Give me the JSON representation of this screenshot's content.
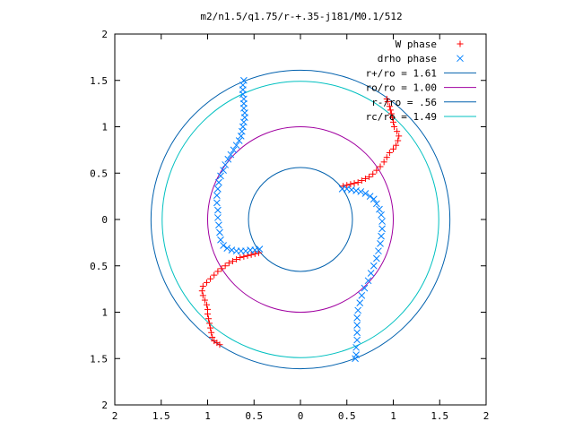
{
  "chart_data": {
    "type": "scatter",
    "title": "m2/n1.5/q1.75/r-+.35-j181/M0.1/512",
    "xlim": [
      -2,
      2
    ],
    "ylim": [
      -2,
      2
    ],
    "x_ticks": [
      -2,
      -1.5,
      -1,
      -0.5,
      0,
      0.5,
      1,
      1.5,
      2
    ],
    "y_ticks": [
      -2,
      -1.5,
      -1,
      -0.5,
      0,
      0.5,
      1,
      1.5,
      2
    ],
    "x_tick_labels": [
      "2",
      "1.5",
      "1",
      "0.5",
      "0",
      "0.5",
      "1",
      "1.5",
      "2"
    ],
    "y_tick_labels": [
      "2",
      "1.5",
      "1",
      "0.5",
      "0",
      "0.5",
      "1",
      "1.5",
      "2"
    ],
    "grid": false,
    "legend_position": "top-right",
    "legend": [
      {
        "label": "W phase",
        "kind": "plus",
        "color": "#ff0000"
      },
      {
        "label": "drho phase",
        "kind": "cross",
        "color": "#0080ff"
      },
      {
        "label": "r+/ro = 1.61",
        "kind": "line",
        "color": "#0060ad"
      },
      {
        "label": "ro/ro = 1.00",
        "kind": "line",
        "color": "#a000a0"
      },
      {
        "label": "r-/ro = .56",
        "kind": "line",
        "color": "#0060ad"
      },
      {
        "label": "rc/ro = 1.49",
        "kind": "line",
        "color": "#00c0c0"
      }
    ],
    "circles": [
      {
        "name": "r+/ro",
        "radius": 1.61,
        "color": "#0060ad"
      },
      {
        "name": "ro/ro",
        "radius": 1.0,
        "color": "#a000a0"
      },
      {
        "name": "r-/ro",
        "radius": 0.56,
        "color": "#0060ad"
      },
      {
        "name": "rc/ro",
        "radius": 1.49,
        "color": "#00c0c0"
      }
    ],
    "series": [
      {
        "name": "W phase",
        "marker": "plus",
        "color": "#ff0000",
        "points": [
          [
            0.46,
            0.36
          ],
          [
            0.5,
            0.37
          ],
          [
            0.54,
            0.38
          ],
          [
            0.58,
            0.39
          ],
          [
            0.62,
            0.4
          ],
          [
            0.66,
            0.42
          ],
          [
            0.7,
            0.44
          ],
          [
            0.74,
            0.46
          ],
          [
            0.78,
            0.49
          ],
          [
            0.82,
            0.53
          ],
          [
            0.86,
            0.57
          ],
          [
            0.9,
            0.62
          ],
          [
            0.93,
            0.67
          ],
          [
            0.96,
            0.72
          ],
          [
            1.0,
            0.76
          ],
          [
            1.03,
            0.8
          ],
          [
            1.05,
            0.85
          ],
          [
            1.06,
            0.9
          ],
          [
            1.04,
            0.95
          ],
          [
            1.01,
            1.0
          ],
          [
            1.0,
            1.05
          ],
          [
            0.99,
            1.1
          ],
          [
            0.98,
            1.14
          ],
          [
            0.97,
            1.18
          ],
          [
            0.96,
            1.22
          ],
          [
            0.94,
            1.27
          ],
          [
            0.93,
            1.3
          ],
          [
            -0.45,
            -0.36
          ],
          [
            -0.49,
            -0.37
          ],
          [
            -0.53,
            -0.38
          ],
          [
            -0.57,
            -0.39
          ],
          [
            -0.61,
            -0.4
          ],
          [
            -0.65,
            -0.41
          ],
          [
            -0.69,
            -0.43
          ],
          [
            -0.73,
            -0.45
          ],
          [
            -0.77,
            -0.47
          ],
          [
            -0.81,
            -0.5
          ],
          [
            -0.85,
            -0.53
          ],
          [
            -0.89,
            -0.56
          ],
          [
            -0.93,
            -0.6
          ],
          [
            -0.97,
            -0.64
          ],
          [
            -1.01,
            -0.68
          ],
          [
            -1.05,
            -0.72
          ],
          [
            -1.06,
            -0.77
          ],
          [
            -1.05,
            -0.82
          ],
          [
            -1.03,
            -0.87
          ],
          [
            -1.01,
            -0.92
          ],
          [
            -1.0,
            -0.97
          ],
          [
            -1.0,
            -1.02
          ],
          [
            -0.99,
            -1.07
          ],
          [
            -0.98,
            -1.12
          ],
          [
            -0.97,
            -1.17
          ],
          [
            -0.96,
            -1.22
          ],
          [
            -0.95,
            -1.27
          ],
          [
            -0.93,
            -1.31
          ],
          [
            -0.9,
            -1.33
          ],
          [
            -0.87,
            -1.35
          ]
        ]
      },
      {
        "name": "drho phase",
        "marker": "cross",
        "color": "#0080ff",
        "points": [
          [
            -0.61,
            1.5
          ],
          [
            -0.62,
            1.45
          ],
          [
            -0.62,
            1.4
          ],
          [
            -0.62,
            1.35
          ],
          [
            -0.61,
            1.3
          ],
          [
            -0.61,
            1.25
          ],
          [
            -0.61,
            1.2
          ],
          [
            -0.6,
            1.15
          ],
          [
            -0.6,
            1.1
          ],
          [
            -0.61,
            1.05
          ],
          [
            -0.62,
            1.0
          ],
          [
            -0.63,
            0.95
          ],
          [
            -0.64,
            0.9
          ],
          [
            -0.66,
            0.85
          ],
          [
            -0.69,
            0.8
          ],
          [
            -0.72,
            0.75
          ],
          [
            -0.75,
            0.7
          ],
          [
            -0.78,
            0.65
          ],
          [
            -0.81,
            0.59
          ],
          [
            -0.83,
            0.53
          ],
          [
            -0.86,
            0.47
          ],
          [
            -0.88,
            0.4
          ],
          [
            -0.89,
            0.33
          ],
          [
            -0.9,
            0.26
          ],
          [
            -0.9,
            0.18
          ],
          [
            -0.89,
            0.1
          ],
          [
            -0.89,
            0.02
          ],
          [
            -0.88,
            -0.06
          ],
          [
            -0.87,
            -0.14
          ],
          [
            -0.86,
            -0.22
          ],
          [
            -0.83,
            -0.28
          ],
          [
            -0.79,
            -0.31
          ],
          [
            -0.74,
            -0.33
          ],
          [
            -0.69,
            -0.34
          ],
          [
            -0.64,
            -0.34
          ],
          [
            -0.59,
            -0.34
          ],
          [
            -0.54,
            -0.33
          ],
          [
            -0.49,
            -0.33
          ],
          [
            -0.44,
            -0.32
          ],
          [
            0.45,
            0.33
          ],
          [
            0.5,
            0.33
          ],
          [
            0.55,
            0.32
          ],
          [
            0.6,
            0.31
          ],
          [
            0.65,
            0.3
          ],
          [
            0.7,
            0.28
          ],
          [
            0.75,
            0.25
          ],
          [
            0.79,
            0.22
          ],
          [
            0.82,
            0.17
          ],
          [
            0.85,
            0.11
          ],
          [
            0.87,
            0.05
          ],
          [
            0.88,
            -0.02
          ],
          [
            0.88,
            -0.1
          ],
          [
            0.87,
            -0.18
          ],
          [
            0.86,
            -0.26
          ],
          [
            0.84,
            -0.34
          ],
          [
            0.82,
            -0.42
          ],
          [
            0.79,
            -0.5
          ],
          [
            0.76,
            -0.58
          ],
          [
            0.73,
            -0.66
          ],
          [
            0.69,
            -0.74
          ],
          [
            0.66,
            -0.82
          ],
          [
            0.64,
            -0.9
          ],
          [
            0.62,
            -0.98
          ],
          [
            0.61,
            -1.06
          ],
          [
            0.61,
            -1.14
          ],
          [
            0.61,
            -1.22
          ],
          [
            0.61,
            -1.3
          ],
          [
            0.6,
            -1.38
          ],
          [
            0.6,
            -1.46
          ],
          [
            0.59,
            -1.5
          ]
        ]
      }
    ]
  }
}
